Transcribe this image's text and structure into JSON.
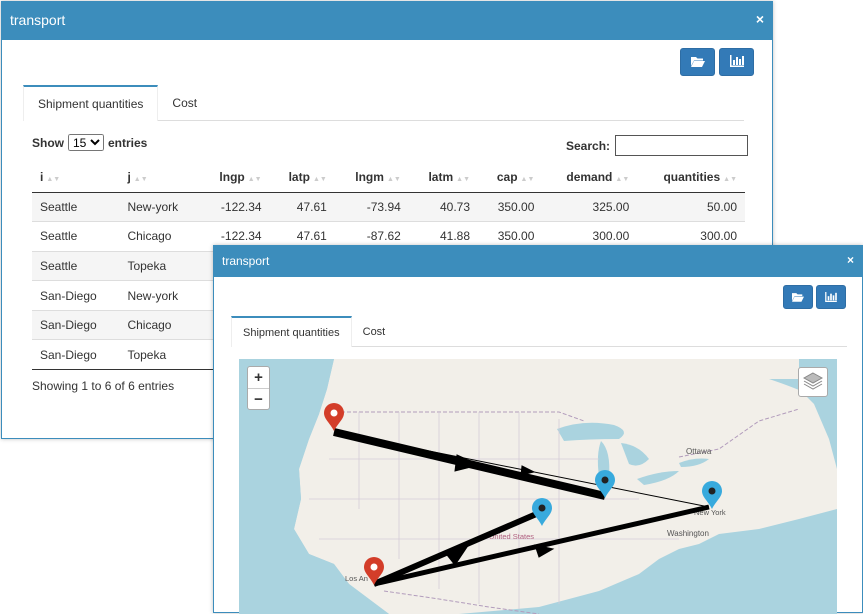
{
  "window1": {
    "title": "transport",
    "close": "×",
    "tabs": [
      {
        "label": "Shipment quantities",
        "active": true
      },
      {
        "label": "Cost",
        "active": false
      }
    ],
    "length": {
      "show": "Show",
      "value": "15",
      "entries": "entries",
      "options": [
        "15"
      ]
    },
    "search_label": "Search:",
    "columns": [
      "i",
      "j",
      "lngp",
      "latp",
      "lngm",
      "latm",
      "cap",
      "demand",
      "quantities"
    ],
    "rows": [
      [
        "Seattle",
        "New-york",
        "-122.34",
        "47.61",
        "-73.94",
        "40.73",
        "350.00",
        "325.00",
        "50.00"
      ],
      [
        "Seattle",
        "Chicago",
        "-122.34",
        "47.61",
        "-87.62",
        "41.88",
        "350.00",
        "300.00",
        "300.00"
      ],
      [
        "Seattle",
        "Topeka",
        "",
        "",
        "",
        "",
        "",
        "",
        ""
      ],
      [
        "San-Diego",
        "New-york",
        "",
        "",
        "",
        "",
        "",
        "",
        ""
      ],
      [
        "San-Diego",
        "Chicago",
        "",
        "",
        "",
        "",
        "",
        "",
        ""
      ],
      [
        "San-Diego",
        "Topeka",
        "",
        "",
        "",
        "",
        "",
        "",
        ""
      ]
    ],
    "info": "Showing 1 to 6 of 6 entries",
    "icons": [
      "folder-open-icon",
      "bar-chart-icon"
    ]
  },
  "window2": {
    "title": "transport",
    "close": "×",
    "tabs": [
      {
        "label": "Shipment quantities",
        "active": true
      },
      {
        "label": "Cost",
        "active": false
      }
    ],
    "icons": [
      "folder-open-icon",
      "bar-chart-icon"
    ],
    "map": {
      "zoom_in": "+",
      "zoom_out": "−",
      "labels": {
        "ottawa": "Ottawa",
        "newyork": "New York",
        "washington": "Washington",
        "us": "United States",
        "la": "Los An"
      },
      "colors": {
        "water": "#aad3df",
        "land": "#f2efe9",
        "producer_marker": "#d33d29",
        "market_marker": "#38aadd",
        "route": "#000000"
      }
    }
  }
}
